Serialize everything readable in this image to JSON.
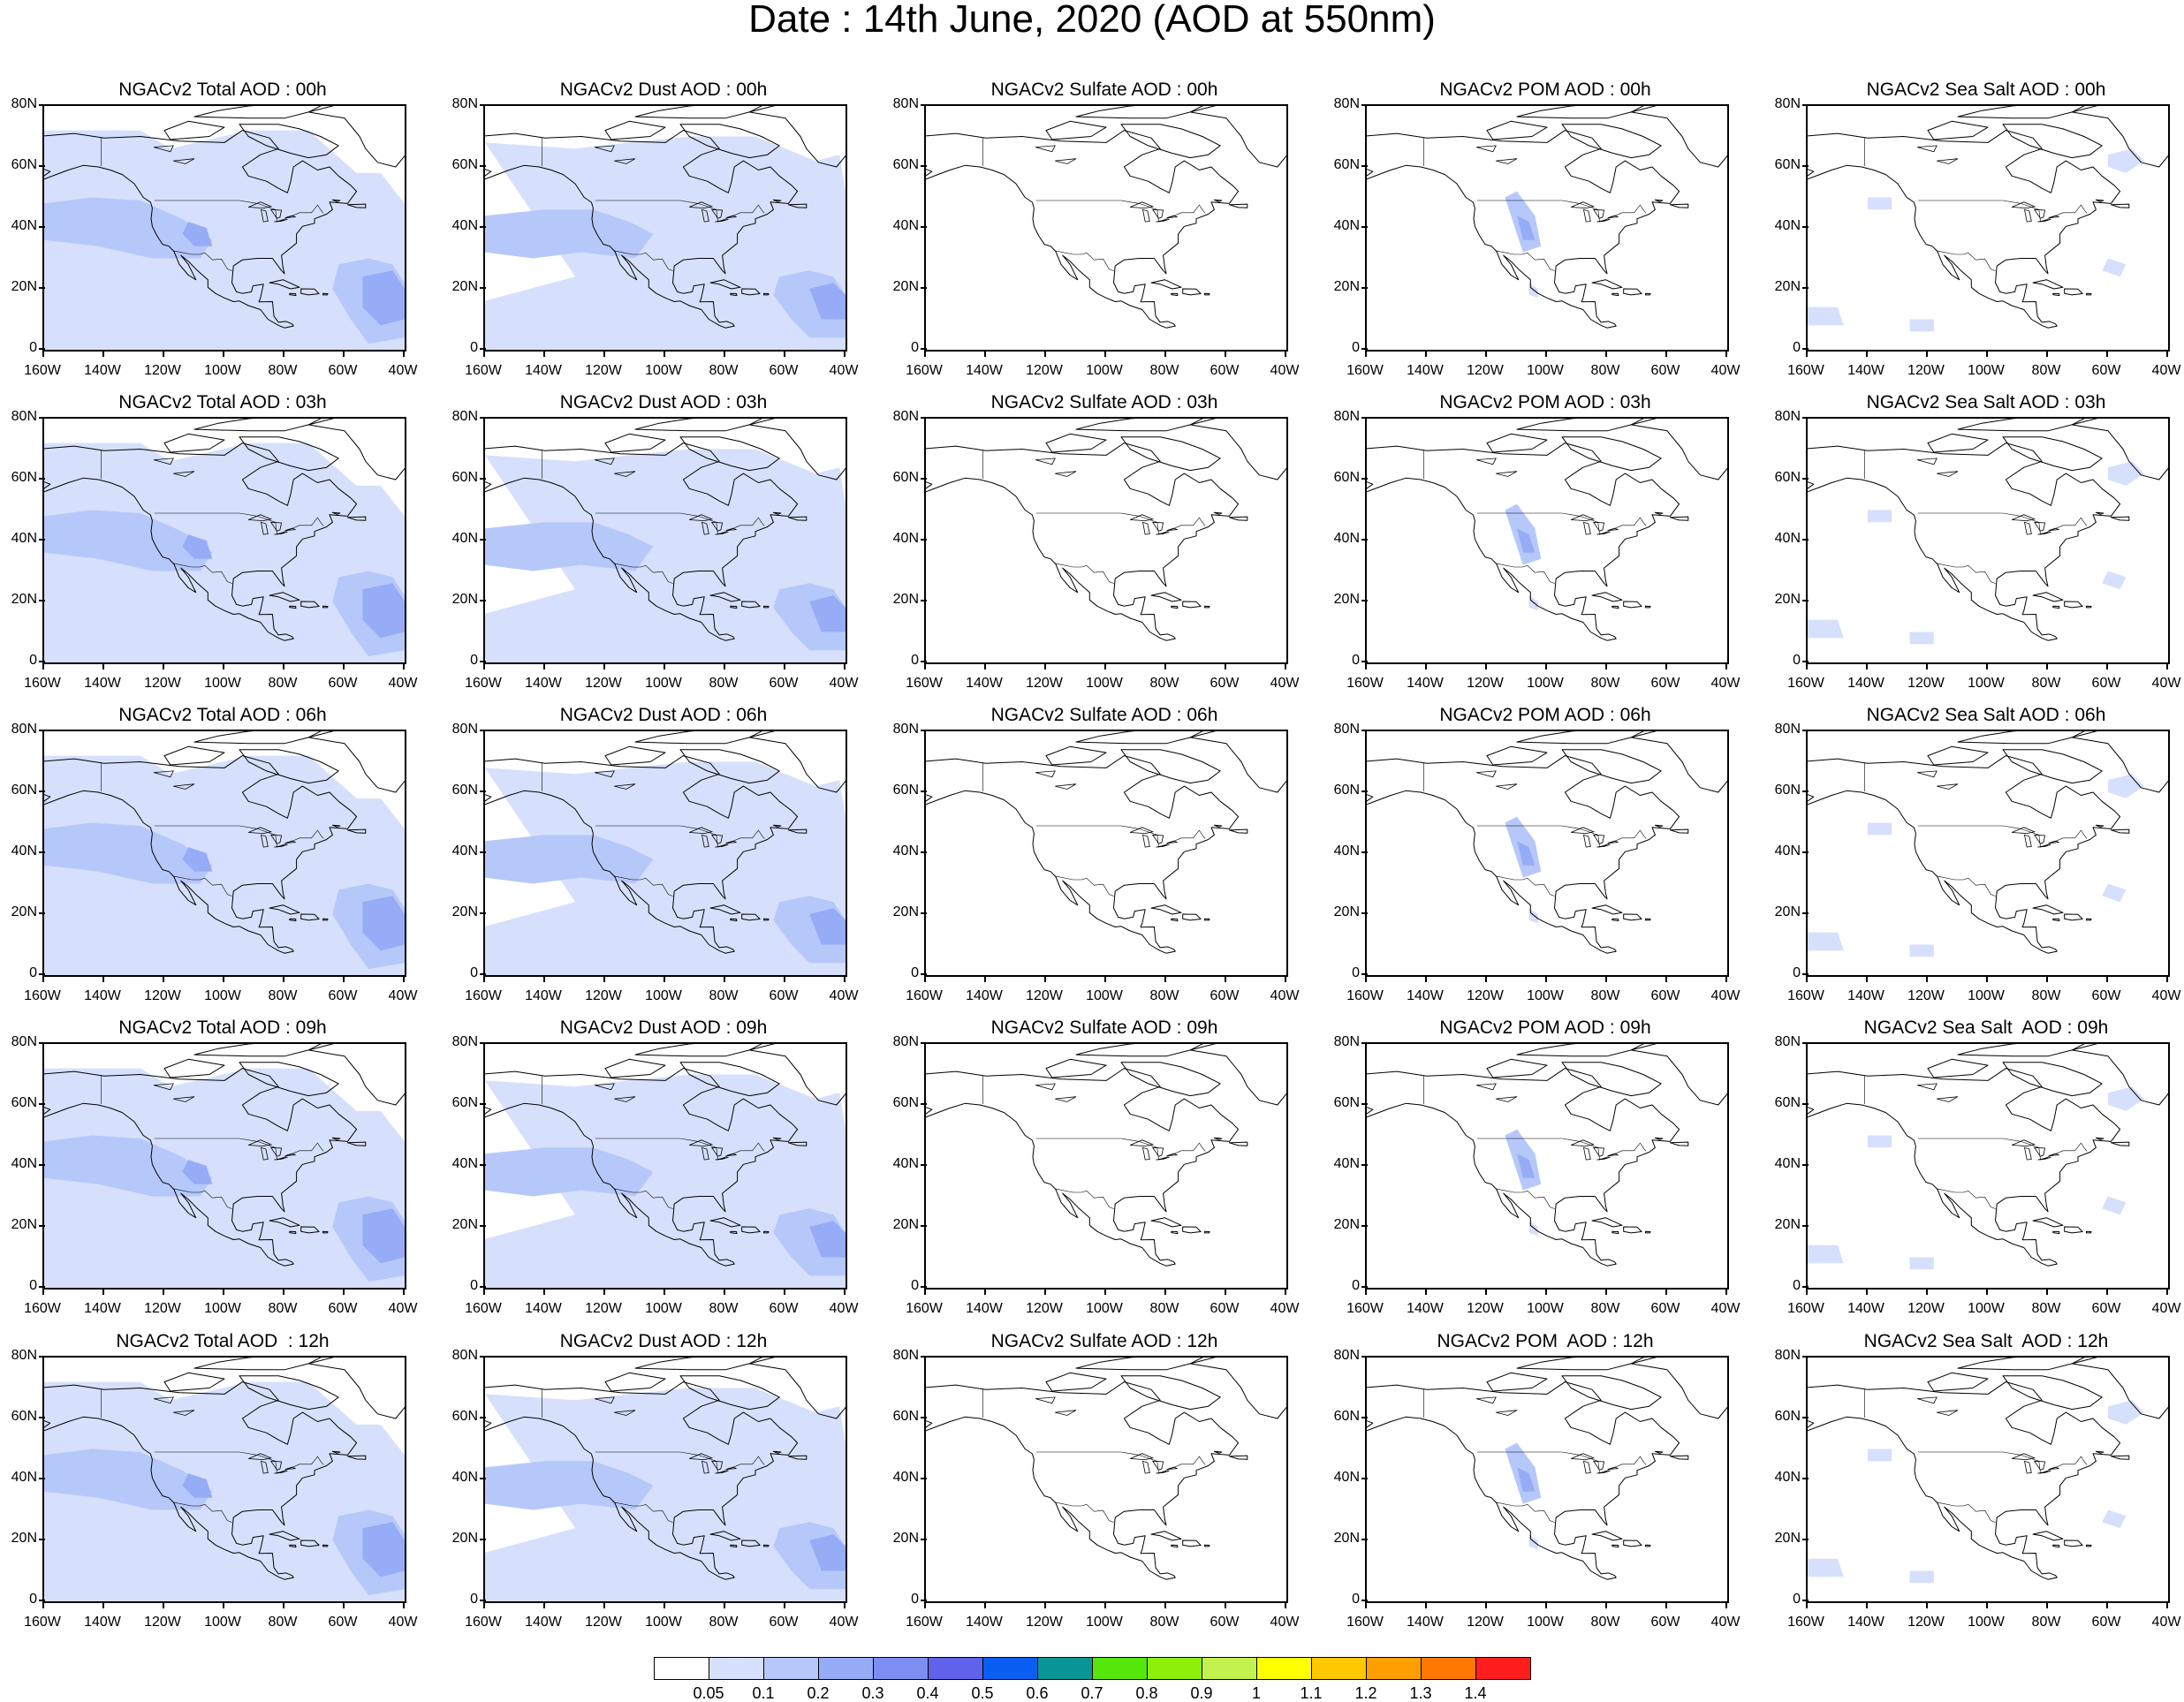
{
  "title": "Date : 14th June, 2020 (AOD at 550nm)",
  "panels": [
    [
      "NGACv2 Total AOD : 00h",
      "NGACv2 Dust AOD : 00h",
      "NGACv2 Sulfate AOD : 00h",
      "NGACv2 POM AOD : 00h",
      "NGACv2 Sea Salt AOD : 00h"
    ],
    [
      "NGACv2 Total AOD : 03h",
      "NGACv2 Dust AOD : 03h",
      "NGACv2 Sulfate AOD : 03h",
      "NGACv2 POM AOD : 03h",
      "NGACv2 Sea Salt AOD : 03h"
    ],
    [
      "NGACv2 Total AOD : 06h",
      "NGACv2 Dust AOD : 06h",
      "NGACv2 Sulfate AOD : 06h",
      "NGACv2 POM AOD : 06h",
      "NGACv2 Sea Salt AOD : 06h"
    ],
    [
      "NGACv2 Total AOD : 09h",
      "NGACv2 Dust AOD : 09h",
      "NGACv2 Sulfate AOD : 09h",
      "NGACv2 POM AOD : 09h",
      "NGACv2 Sea Salt  AOD : 09h"
    ],
    [
      "NGACv2 Total AOD  : 12h",
      "NGACv2 Dust AOD : 12h",
      "NGACv2 Sulfate AOD : 12h",
      "NGACv2 POM  AOD : 12h",
      "NGACv2 Sea Salt  AOD : 12h"
    ]
  ],
  "lat_labels": [
    "80N",
    "60N",
    "40N",
    "20N",
    "0"
  ],
  "lon_labels": [
    "160W",
    "140W",
    "120W",
    "100W",
    "80W",
    "60W",
    "40W"
  ],
  "colorbar": {
    "labels": [
      "0.05",
      "0.1",
      "0.2",
      "0.3",
      "0.4",
      "0.5",
      "0.6",
      "0.7",
      "0.8",
      "0.9",
      "1",
      "1.1",
      "1.2",
      "1.3",
      "1.4"
    ],
    "colors": [
      "#ffffff",
      "#d6e0fc",
      "#b6c8fa",
      "#96acf6",
      "#7d8ef2",
      "#5f62ea",
      "#0a5ef2",
      "#0a9696",
      "#56e60a",
      "#8ef00a",
      "#c3f24e",
      "#ffff00",
      "#ffc800",
      "#ffa000",
      "#ff7800",
      "#ff1e1e"
    ]
  }
}
